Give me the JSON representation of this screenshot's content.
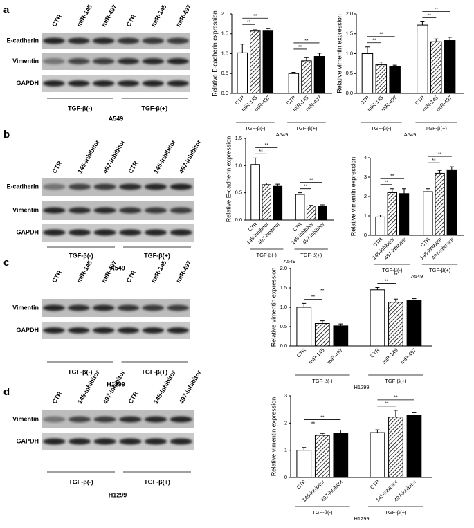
{
  "blots": [
    {
      "label": "a",
      "lanes": [
        "CTR",
        "miR-145",
        "miR-497",
        "CTR",
        "miR-145",
        "miR-497"
      ],
      "rows": [
        "E-cadherin",
        "Vimentin",
        "GAPDH"
      ],
      "groups": [
        "TGF-β(-)",
        "TGF-β(+)"
      ],
      "cell_line": "A549"
    },
    {
      "label": "b",
      "lanes": [
        "CTR",
        "145-inhibitor",
        "497-inhibitor",
        "CTR",
        "145-inhibitor",
        "497-inhibitor"
      ],
      "rows": [
        "E-cadherin",
        "Vimentin",
        "GAPDH"
      ],
      "groups": [
        "TGF-β(-)",
        "TGF-β(+)"
      ],
      "cell_line": "A549"
    },
    {
      "label": "c",
      "lanes": [
        "CTR",
        "miR-145",
        "miR-497",
        "CTR",
        "miR-145",
        "miR-497"
      ],
      "rows": [
        "Vimentin",
        "GAPDH"
      ],
      "groups": [
        "TGF-β(-)",
        "TGF-β(+)"
      ],
      "cell_line": "H1299"
    },
    {
      "label": "d",
      "lanes": [
        "CTR",
        "145-inhibitor",
        "497-inhibitor",
        "CTR",
        "145-inhibitor",
        "497-inhibitor"
      ],
      "rows": [
        "Vimentin",
        "GAPDH"
      ],
      "groups": [
        "TGF-β(-)",
        "TGF-β(+)"
      ],
      "cell_line": "H1299"
    }
  ],
  "chart_data": [
    {
      "type": "bar",
      "y_label": "Relative E-cadherin expression",
      "categories": [
        "CTR",
        "miR-145",
        "miR-497",
        "CTR",
        "miR-145",
        "miR-497"
      ],
      "groups": [
        "TGF-β(-)",
        "TGF-β(+)"
      ],
      "cell_line": "A549",
      "values": [
        1.02,
        1.57,
        1.57,
        0.5,
        0.82,
        0.93
      ],
      "errors": [
        0.22,
        0.03,
        0.06,
        0.03,
        0.08,
        0.08
      ],
      "fills": [
        "white",
        "hatched",
        "black"
      ],
      "ylim": [
        0,
        2
      ],
      "yticks": [
        {
          "value": 0,
          "label": "0.0"
        },
        {
          "value": 0.5,
          "label": "0.5"
        },
        {
          "value": 1,
          "label": "1.0"
        },
        {
          "value": 1.5,
          "label": "1.5"
        },
        {
          "value": 2,
          "label": "2.0"
        }
      ],
      "annotations": [
        "**",
        "**",
        "**",
        "**"
      ]
    },
    {
      "type": "bar",
      "y_label": "Relative vimentin expression",
      "categories": [
        "CTR",
        "miR-145",
        "miR-497",
        "CTR",
        "miR-145",
        "miR-497"
      ],
      "groups": [
        "TGF-β(-)",
        "TGF-β(+)"
      ],
      "cell_line": "A549",
      "values": [
        1.0,
        0.72,
        0.68,
        1.72,
        1.3,
        1.33
      ],
      "errors": [
        0.17,
        0.07,
        0.03,
        0.08,
        0.07,
        0.08
      ],
      "fills": [
        "white",
        "hatched",
        "black"
      ],
      "ylim": [
        0,
        2
      ],
      "yticks": [
        {
          "value": 0,
          "label": "0.0"
        },
        {
          "value": 0.5,
          "label": "0.5"
        },
        {
          "value": 1,
          "label": "1.0"
        },
        {
          "value": 1.5,
          "label": "1.5"
        },
        {
          "value": 2,
          "label": "2.0"
        }
      ],
      "annotations": [
        "**",
        "**",
        "**",
        "**"
      ]
    },
    {
      "type": "bar",
      "y_label": "Relative E-cadherin expression",
      "categories": [
        "CTR",
        "145-inhibitor",
        "497-inhibitor",
        "CTR",
        "145-inhibitor",
        "497-inhibitor"
      ],
      "groups": [
        "TGF-β(-)",
        "TGF-β(+)"
      ],
      "cell_line": "A549",
      "values": [
        1.02,
        0.65,
        0.62,
        0.47,
        0.26,
        0.26
      ],
      "errors": [
        0.12,
        0.03,
        0.04,
        0.03,
        0.01,
        0.02
      ],
      "fills": [
        "white",
        "hatched",
        "black"
      ],
      "ylim": [
        0,
        1.5
      ],
      "yticks": [
        {
          "value": 0,
          "label": "0.0"
        },
        {
          "value": 0.5,
          "label": "0.5"
        },
        {
          "value": 1,
          "label": "1.0"
        },
        {
          "value": 1.5,
          "label": "1.5"
        }
      ],
      "annotations": [
        "**",
        "**",
        "**",
        "**"
      ]
    },
    {
      "type": "bar",
      "y_label": "Relative vimentin expression",
      "categories": [
        "CTR",
        "145-inhibitor",
        "497-inhibitor",
        "CTR",
        "145-inhibitor",
        "497-inhibitor"
      ],
      "groups": [
        "TGF-β(-)",
        "TGF-β(+)"
      ],
      "cell_line": "A549",
      "values": [
        0.95,
        2.2,
        2.15,
        2.25,
        3.2,
        3.38
      ],
      "errors": [
        0.1,
        0.2,
        0.25,
        0.15,
        0.15,
        0.15
      ],
      "fills": [
        "white",
        "hatched",
        "black"
      ],
      "ylim": [
        0,
        4
      ],
      "yticks": [
        0,
        1,
        2,
        3,
        4
      ],
      "annotations": [
        "**",
        "**",
        "**",
        "**"
      ]
    },
    {
      "type": "bar",
      "y_label": "Relative vimentin expression",
      "categories": [
        "CTR",
        "miR-145",
        "miR-497",
        "CTR",
        "miR-145",
        "miR-497"
      ],
      "groups": [
        "TGF-β(-)",
        "TGF-β(+)"
      ],
      "cell_line": "H1299",
      "values": [
        1.0,
        0.58,
        0.52,
        1.45,
        1.13,
        1.17
      ],
      "errors": [
        0.1,
        0.07,
        0.05,
        0.06,
        0.08,
        0.05
      ],
      "fills": [
        "white",
        "hatched",
        "black"
      ],
      "ylim": [
        0,
        2
      ],
      "yticks": [
        {
          "value": 0,
          "label": "0.0"
        },
        {
          "value": 0.5,
          "label": "0.5"
        },
        {
          "value": 1,
          "label": "1.0"
        },
        {
          "value": 1.5,
          "label": "1.5"
        },
        {
          "value": 2,
          "label": "2.0"
        }
      ],
      "annotations": [
        "**",
        "**",
        "**",
        "**"
      ]
    },
    {
      "type": "bar",
      "y_label": "Relative vimentin expression",
      "categories": [
        "CTR",
        "145-inhibitor",
        "497-inhibitor",
        "CTR",
        "145-inhibitor",
        "497-inhibitor"
      ],
      "groups": [
        "TGF-β(-)",
        "TGF-β(+)"
      ],
      "cell_line": "H1299",
      "values": [
        1.0,
        1.55,
        1.62,
        1.65,
        2.22,
        2.28
      ],
      "errors": [
        0.1,
        0.07,
        0.12,
        0.1,
        0.25,
        0.1
      ],
      "fills": [
        "white",
        "hatched",
        "black"
      ],
      "ylim": [
        0,
        3
      ],
      "yticks": [
        0,
        1,
        2,
        3
      ],
      "annotations": [
        "**",
        "**",
        "**",
        "**"
      ]
    }
  ]
}
